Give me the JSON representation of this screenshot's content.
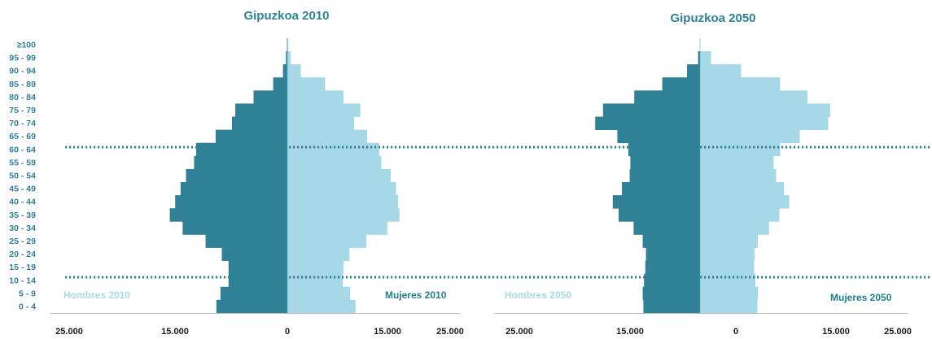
{
  "colors": {
    "male": "#2f8197",
    "female": "#a7d8e7",
    "dots": "#2f7f95",
    "axis": "#b8b8b8"
  },
  "age_groups": [
    "0 - 4",
    "5 - 9",
    "10 - 14",
    "15 - 19",
    "20 - 24",
    "25 - 29",
    "30 - 34",
    "35 - 39",
    "40 - 44",
    "45 - 49",
    "50 - 54",
    "55 - 59",
    "60 - 64",
    "65 - 69",
    "70 - 74",
    "75 - 79",
    "80 - 84",
    "85 - 89",
    "90 - 94",
    "95 - 99",
    "≥100"
  ],
  "chart_data": [
    {
      "type": "bar",
      "orientation": "horizontal-population-pyramid",
      "title": "Gipuzkoa 2010",
      "categories": [
        "0 - 4",
        "5 - 9",
        "10 - 14",
        "15 - 19",
        "20 - 24",
        "25 - 29",
        "30 - 34",
        "35 - 39",
        "40 - 44",
        "45 - 49",
        "50 - 54",
        "55 - 59",
        "60 - 64",
        "65 - 69",
        "70 - 74",
        "75 - 79",
        "80 - 84",
        "85 - 89",
        "90 - 94",
        "95 - 99",
        "≥100"
      ],
      "series": [
        {
          "name": "Hombres 2010",
          "values": [
            10500,
            9900,
            8700,
            8700,
            9700,
            12100,
            15500,
            17400,
            16600,
            15800,
            15000,
            13800,
            13500,
            10600,
            8200,
            7700,
            5000,
            2100,
            650,
            200,
            50
          ]
        },
        {
          "name": "Mujeres 2010",
          "values": [
            10100,
            9300,
            8200,
            8300,
            9200,
            11700,
            14800,
            16600,
            16400,
            16100,
            15300,
            13900,
            13600,
            11800,
            9900,
            10800,
            8300,
            5600,
            2000,
            500,
            150
          ]
        }
      ],
      "xticks": [
        "25.000",
        "15.000",
        "0",
        "15.000",
        "25.000"
      ],
      "xlim": [
        -25000,
        25000
      ]
    },
    {
      "type": "bar",
      "orientation": "horizontal-population-pyramid",
      "title": "Gipuzkoa 2050",
      "categories": [
        "0 - 4",
        "5 - 9",
        "10 - 14",
        "15 - 19",
        "20 - 24",
        "25 - 29",
        "30 - 34",
        "35 - 39",
        "40 - 44",
        "45 - 49",
        "50 - 54",
        "55 - 59",
        "60 - 64",
        "65 - 69",
        "70 - 74",
        "75 - 79",
        "80 - 84",
        "85 - 89",
        "90 - 94",
        "95 - 99",
        "≥100"
      ],
      "series": [
        {
          "name": "Hombres 2050",
          "values": [
            8700,
            8800,
            8600,
            8400,
            8300,
            8800,
            10200,
            12500,
            13400,
            12000,
            10800,
            10700,
            11000,
            12700,
            16100,
            14900,
            10100,
            5800,
            2000,
            300,
            0
          ]
        },
        {
          "name": "Mujeres 2050",
          "values": [
            8800,
            8900,
            8500,
            8300,
            8400,
            8900,
            10600,
            12200,
            13700,
            12900,
            11700,
            11300,
            12300,
            15300,
            19700,
            20000,
            16500,
            12300,
            6300,
            1700,
            0
          ]
        }
      ],
      "xticks": [
        "25.000",
        "15.000",
        "0",
        "15.000",
        "25.000"
      ],
      "xlim": [
        -25000,
        25000
      ]
    }
  ]
}
